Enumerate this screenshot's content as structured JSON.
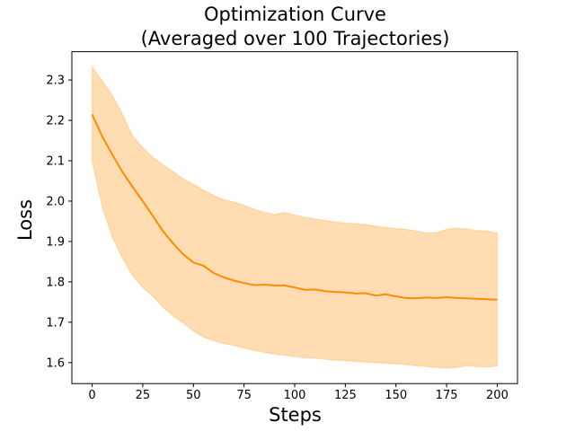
{
  "figure": {
    "title_line1": "Optimization Curve",
    "title_line2": "(Averaged over 100 Trajectories)"
  },
  "chart_data": {
    "type": "line",
    "title": "Optimization Curve (Averaged over 100 Trajectories)",
    "xlabel": "Steps",
    "ylabel": "Loss",
    "legend": "none",
    "grid": false,
    "xlim": [
      -10,
      210
    ],
    "ylim": [
      1.548,
      2.37
    ],
    "x_ticks": [
      0,
      25,
      50,
      75,
      100,
      125,
      150,
      175,
      200
    ],
    "y_ticks": [
      "1.6",
      "1.7",
      "1.8",
      "1.9",
      "2.0",
      "2.1",
      "2.2",
      "2.3"
    ],
    "colors": {
      "line": "#ff8c00",
      "band_fill": "rgba(255,140,0,0.30)",
      "band_edge": "rgba(255,140,0,0.18)",
      "axes": "#000000"
    },
    "x": [
      0,
      5,
      10,
      15,
      20,
      25,
      30,
      35,
      40,
      45,
      50,
      55,
      60,
      65,
      70,
      75,
      80,
      85,
      90,
      95,
      100,
      105,
      110,
      115,
      120,
      125,
      130,
      135,
      140,
      145,
      150,
      155,
      160,
      165,
      170,
      175,
      180,
      185,
      190,
      195,
      200
    ],
    "series": [
      {
        "name": "mean_loss",
        "values": [
          2.215,
          2.16,
          2.115,
          2.072,
          2.035,
          2.0,
          1.963,
          1.925,
          1.895,
          1.868,
          1.848,
          1.84,
          1.822,
          1.811,
          1.803,
          1.797,
          1.792,
          1.793,
          1.791,
          1.791,
          1.786,
          1.78,
          1.781,
          1.777,
          1.775,
          1.774,
          1.771,
          1.772,
          1.766,
          1.769,
          1.764,
          1.76,
          1.759,
          1.761,
          1.76,
          1.762,
          1.76,
          1.759,
          1.758,
          1.757,
          1.756
        ]
      },
      {
        "name": "band_upper",
        "values": [
          2.332,
          2.298,
          2.262,
          2.215,
          2.162,
          2.133,
          2.108,
          2.09,
          2.073,
          2.055,
          2.042,
          2.027,
          2.014,
          2.004,
          1.998,
          1.99,
          1.98,
          1.972,
          1.967,
          1.972,
          1.966,
          1.96,
          1.956,
          1.952,
          1.948,
          1.946,
          1.944,
          1.942,
          1.938,
          1.935,
          1.932,
          1.93,
          1.926,
          1.921,
          1.922,
          1.93,
          1.933,
          1.931,
          1.927,
          1.926,
          1.921
        ]
      },
      {
        "name": "band_lower",
        "values": [
          2.1,
          1.985,
          1.91,
          1.858,
          1.815,
          1.786,
          1.764,
          1.737,
          1.715,
          1.698,
          1.678,
          1.663,
          1.654,
          1.647,
          1.642,
          1.636,
          1.63,
          1.625,
          1.621,
          1.618,
          1.615,
          1.612,
          1.611,
          1.608,
          1.606,
          1.605,
          1.603,
          1.601,
          1.6,
          1.598,
          1.597,
          1.595,
          1.592,
          1.59,
          1.588,
          1.586,
          1.588,
          1.592,
          1.59,
          1.589,
          1.591
        ]
      }
    ]
  }
}
